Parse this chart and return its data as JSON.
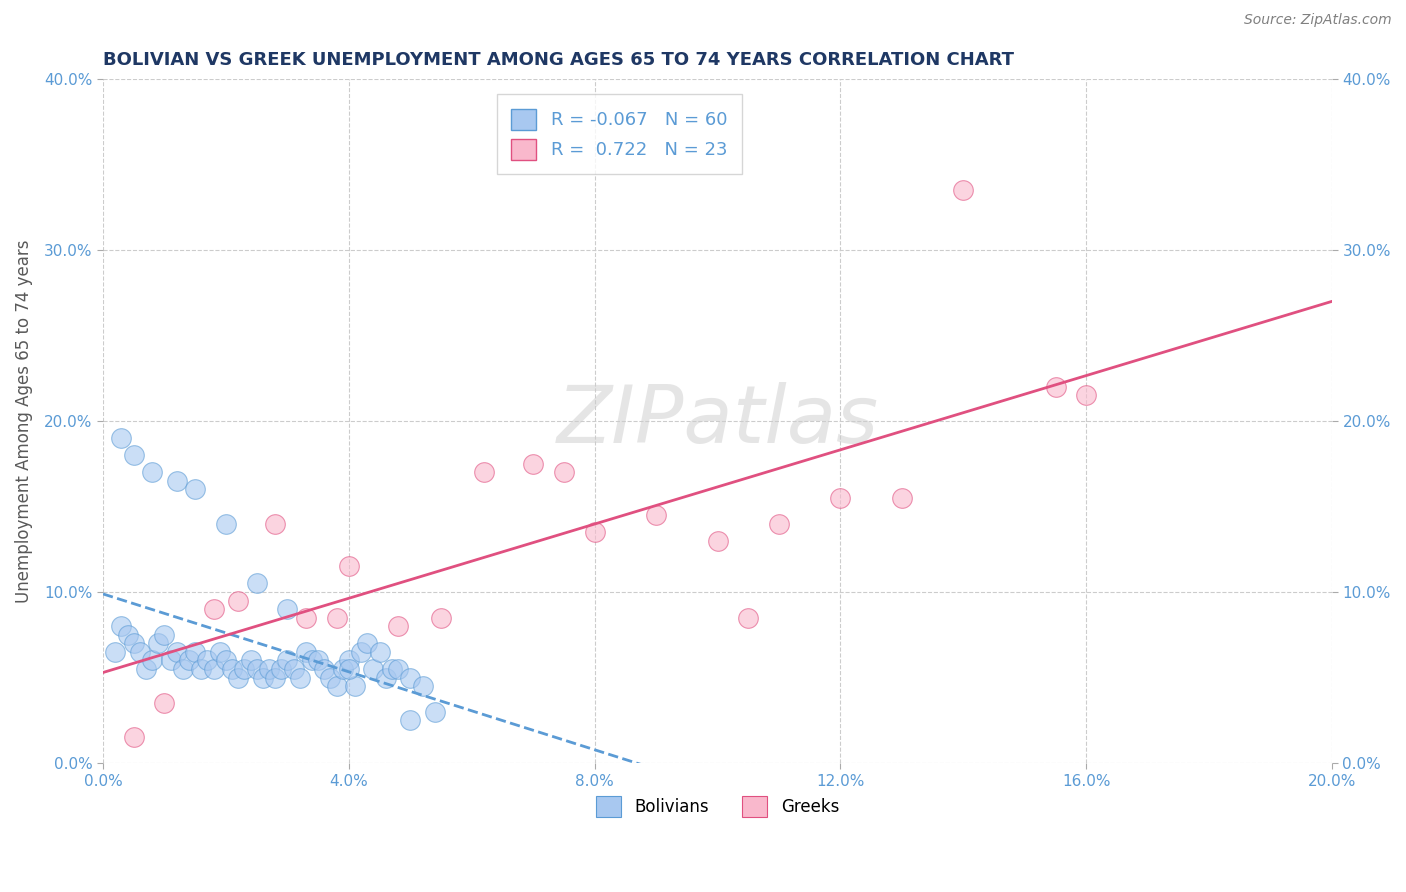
{
  "title": "BOLIVIAN VS GREEK UNEMPLOYMENT AMONG AGES 65 TO 74 YEARS CORRELATION CHART",
  "source": "Source: ZipAtlas.com",
  "ylabel": "Unemployment Among Ages 65 to 74 years",
  "xlim": [
    0.0,
    0.2
  ],
  "ylim": [
    0.0,
    0.4
  ],
  "xticks": [
    0.0,
    0.04,
    0.08,
    0.12,
    0.16,
    0.2
  ],
  "yticks": [
    0.0,
    0.1,
    0.2,
    0.3,
    0.4
  ],
  "xtick_labels": [
    "0.0%",
    "4.0%",
    "8.0%",
    "12.0%",
    "16.0%",
    "20.0%"
  ],
  "ytick_labels": [
    "0.0%",
    "10.0%",
    "20.0%",
    "30.0%",
    "40.0%"
  ],
  "bolivian_color": "#A8C8F0",
  "greek_color": "#F9B8CC",
  "bolivian_line_color": "#5B9BD5",
  "greek_line_color": "#E05080",
  "bolivian_R": -0.067,
  "bolivian_N": 60,
  "greek_R": 0.722,
  "greek_N": 23,
  "watermark": "ZIPatlas",
  "background_color": "#FFFFFF",
  "grid_color": "#CCCCCC",
  "title_color": "#1F3864",
  "axis_label_color": "#595959",
  "tick_color": "#5B9BD5",
  "bolivian_x": [
    0.002,
    0.003,
    0.004,
    0.005,
    0.006,
    0.007,
    0.008,
    0.009,
    0.01,
    0.011,
    0.012,
    0.013,
    0.014,
    0.015,
    0.016,
    0.017,
    0.018,
    0.019,
    0.02,
    0.021,
    0.022,
    0.023,
    0.024,
    0.025,
    0.026,
    0.027,
    0.028,
    0.029,
    0.03,
    0.031,
    0.032,
    0.033,
    0.034,
    0.035,
    0.036,
    0.037,
    0.038,
    0.039,
    0.04,
    0.041,
    0.042,
    0.043,
    0.044,
    0.045,
    0.046,
    0.047,
    0.048,
    0.05,
    0.052,
    0.054,
    0.003,
    0.005,
    0.008,
    0.012,
    0.015,
    0.02,
    0.025,
    0.03,
    0.04,
    0.05
  ],
  "bolivian_y": [
    0.065,
    0.08,
    0.075,
    0.07,
    0.065,
    0.055,
    0.06,
    0.07,
    0.075,
    0.06,
    0.065,
    0.055,
    0.06,
    0.065,
    0.055,
    0.06,
    0.055,
    0.065,
    0.06,
    0.055,
    0.05,
    0.055,
    0.06,
    0.055,
    0.05,
    0.055,
    0.05,
    0.055,
    0.06,
    0.055,
    0.05,
    0.065,
    0.06,
    0.06,
    0.055,
    0.05,
    0.045,
    0.055,
    0.06,
    0.045,
    0.065,
    0.07,
    0.055,
    0.065,
    0.05,
    0.055,
    0.055,
    0.05,
    0.045,
    0.03,
    0.19,
    0.18,
    0.17,
    0.165,
    0.16,
    0.14,
    0.105,
    0.09,
    0.055,
    0.025
  ],
  "greek_x": [
    0.005,
    0.01,
    0.018,
    0.022,
    0.028,
    0.033,
    0.038,
    0.04,
    0.048,
    0.055,
    0.062,
    0.07,
    0.075,
    0.08,
    0.09,
    0.1,
    0.105,
    0.11,
    0.12,
    0.13,
    0.14,
    0.155,
    0.16
  ],
  "greek_y": [
    0.015,
    0.035,
    0.09,
    0.095,
    0.14,
    0.085,
    0.085,
    0.115,
    0.08,
    0.085,
    0.17,
    0.175,
    0.17,
    0.135,
    0.145,
    0.13,
    0.085,
    0.14,
    0.155,
    0.155,
    0.335,
    0.22,
    0.215
  ]
}
